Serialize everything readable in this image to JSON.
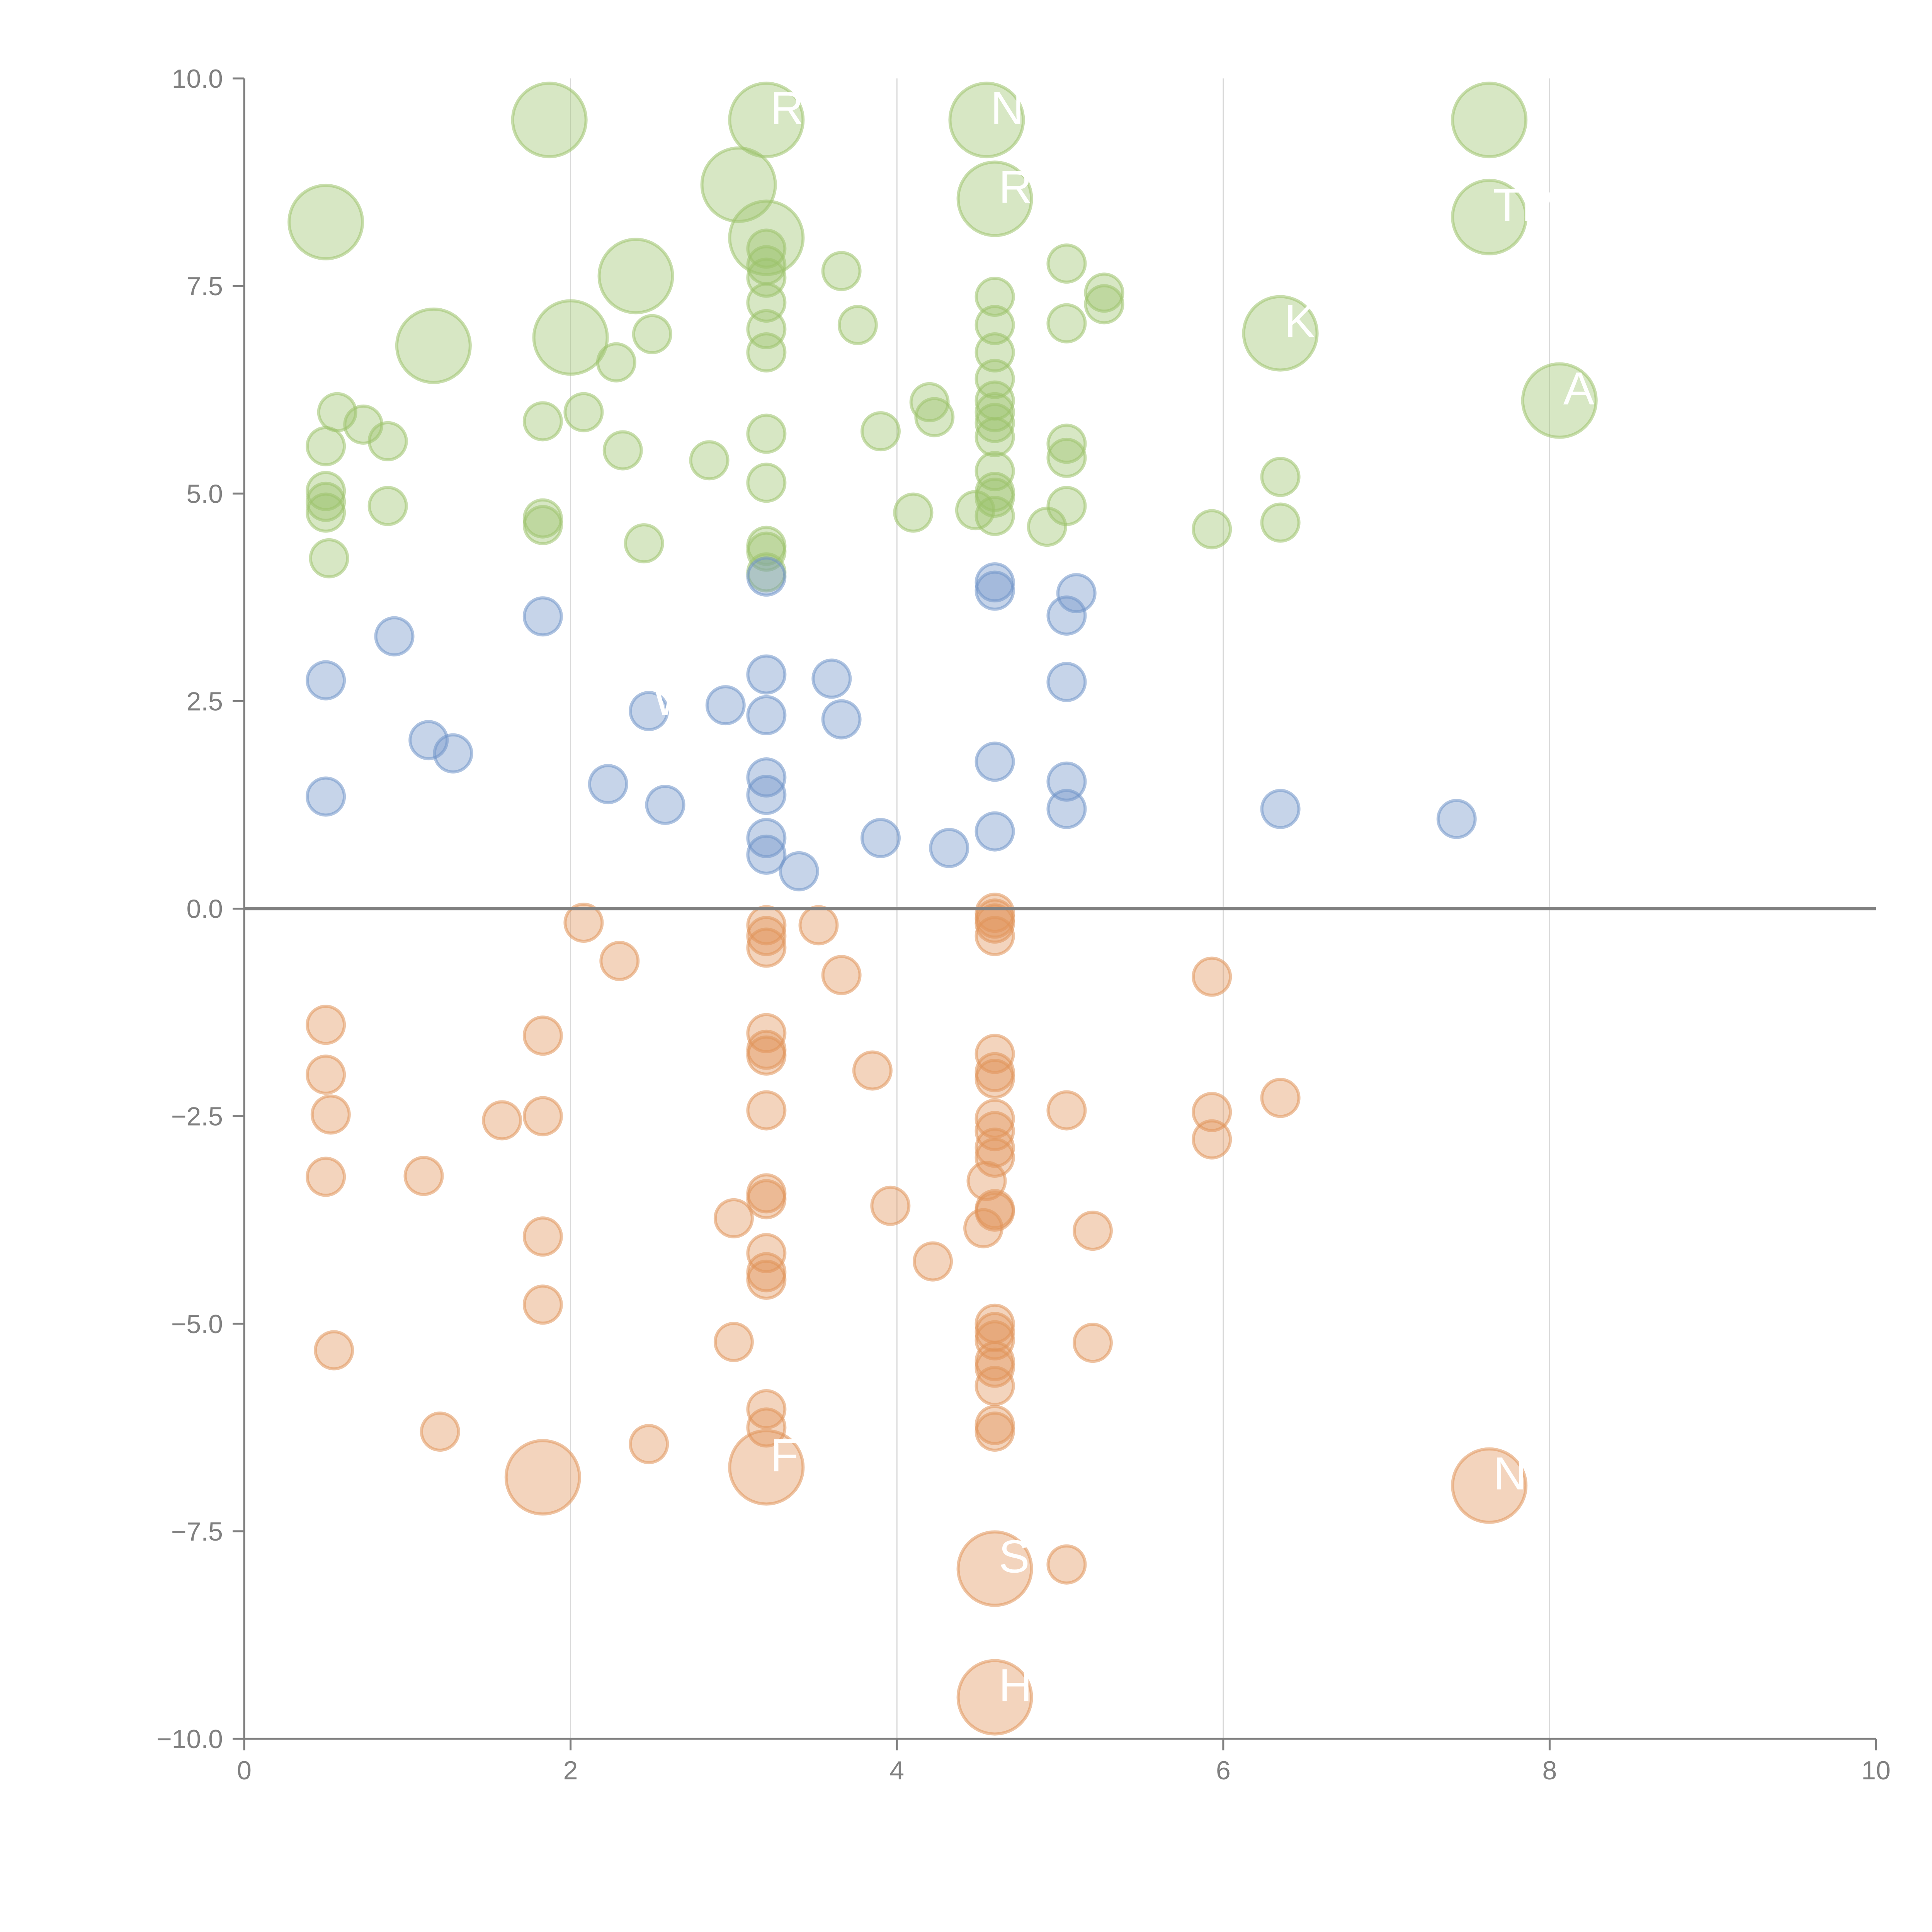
{
  "chart_data": {
    "type": "scatter",
    "subtype": "bubble",
    "title": "",
    "xlabel": "",
    "ylabel": "",
    "xlim": [
      0,
      10
    ],
    "ylim": [
      -10,
      10
    ],
    "x_ticks": [
      "0",
      "2",
      "4",
      "6",
      "8",
      "10"
    ],
    "x_tick_values": [
      0,
      2,
      4,
      6,
      8,
      10
    ],
    "y_ticks": [
      "10.0",
      "7.5",
      "5.0",
      "2.5",
      "0.0",
      "−2.5",
      "−5.0",
      "−7.5",
      "−10.0"
    ],
    "y_tick_values": [
      10,
      7.5,
      5,
      2.5,
      0,
      -2.5,
      -5,
      -7.5,
      -10
    ],
    "vertical_gridlines_at": [
      2,
      4,
      6,
      8
    ],
    "zero_line": true,
    "legend": "none",
    "colors": {
      "high": "#9cc26b",
      "mid": "#7094c8",
      "low": "#e0935a",
      "axis": "#808080",
      "grid": "#d9d9d9",
      "label": "#ffffff"
    },
    "size_note": "bubble size: 1 = small, 2 = large",
    "series": [
      {
        "name": "high",
        "color_key": "high",
        "points": [
          [
            1.87,
            9.5,
            2
          ],
          [
            3.2,
            9.5,
            2
          ],
          [
            4.55,
            9.5,
            2
          ],
          [
            7.63,
            9.5,
            2
          ],
          [
            0.5,
            8.27,
            2
          ],
          [
            3.03,
            8.72,
            2
          ],
          [
            4.6,
            8.55,
            2
          ],
          [
            3.2,
            8.08,
            2
          ],
          [
            7.63,
            8.33,
            2
          ],
          [
            2.4,
            7.62,
            2
          ],
          [
            1.16,
            6.78,
            2
          ],
          [
            2.0,
            6.88,
            2
          ],
          [
            6.35,
            6.93,
            2
          ],
          [
            8.06,
            6.12,
            2
          ],
          [
            3.2,
            7.95,
            1
          ],
          [
            3.2,
            7.75,
            1
          ],
          [
            3.2,
            7.6,
            1
          ],
          [
            3.2,
            7.3,
            1
          ],
          [
            3.2,
            6.98,
            1
          ],
          [
            3.2,
            6.7,
            1
          ],
          [
            3.66,
            7.68,
            1
          ],
          [
            3.76,
            7.03,
            1
          ],
          [
            4.6,
            7.37,
            1
          ],
          [
            4.6,
            7.03,
            1
          ],
          [
            4.6,
            6.7,
            1
          ],
          [
            4.6,
            6.38,
            1
          ],
          [
            4.6,
            6.12,
            1
          ],
          [
            4.6,
            5.98,
            1
          ],
          [
            4.6,
            5.85,
            1
          ],
          [
            4.6,
            5.68,
            1
          ],
          [
            4.6,
            5.27,
            1
          ],
          [
            4.6,
            5.02,
            1
          ],
          [
            4.6,
            4.95,
            1
          ],
          [
            4.6,
            4.73,
            1
          ],
          [
            4.48,
            4.8,
            1
          ],
          [
            5.04,
            7.77,
            1
          ],
          [
            5.04,
            7.05,
            1
          ],
          [
            5.27,
            7.42,
            1
          ],
          [
            5.27,
            7.28,
            1
          ],
          [
            2.28,
            6.58,
            1
          ],
          [
            2.5,
            6.92,
            1
          ],
          [
            0.57,
            5.98,
            1
          ],
          [
            0.73,
            5.83,
            1
          ],
          [
            0.88,
            5.63,
            1
          ],
          [
            0.5,
            5.57,
            1
          ],
          [
            0.5,
            5.03,
            1
          ],
          [
            0.5,
            4.9,
            1
          ],
          [
            0.5,
            4.77,
            1
          ],
          [
            0.52,
            4.22,
            1
          ],
          [
            0.88,
            4.85,
            1
          ],
          [
            1.83,
            5.87,
            1
          ],
          [
            2.08,
            5.98,
            1
          ],
          [
            2.32,
            5.52,
            1
          ],
          [
            2.85,
            5.4,
            1
          ],
          [
            3.2,
            5.72,
            1
          ],
          [
            3.2,
            5.13,
            1
          ],
          [
            1.83,
            4.7,
            1
          ],
          [
            1.83,
            4.62,
            1
          ],
          [
            2.45,
            4.4,
            1
          ],
          [
            3.2,
            4.37,
            1
          ],
          [
            3.2,
            4.3,
            1
          ],
          [
            3.2,
            4.05,
            1
          ],
          [
            3.9,
            5.75,
            1
          ],
          [
            4.2,
            6.1,
            1
          ],
          [
            4.23,
            5.92,
            1
          ],
          [
            4.1,
            4.77,
            1
          ],
          [
            5.04,
            5.6,
            1
          ],
          [
            5.04,
            5.43,
            1
          ],
          [
            5.04,
            4.85,
            1
          ],
          [
            4.92,
            4.6,
            1
          ],
          [
            5.93,
            4.57,
            1
          ],
          [
            6.35,
            5.2,
            1
          ],
          [
            6.35,
            4.65,
            1
          ]
        ]
      },
      {
        "name": "mid",
        "color_key": "mid",
        "points": [
          [
            0.5,
            2.75,
            1
          ],
          [
            0.5,
            1.35,
            1
          ],
          [
            0.92,
            3.28,
            1
          ],
          [
            1.13,
            2.03,
            1
          ],
          [
            1.28,
            1.87,
            1
          ],
          [
            1.83,
            3.52,
            1
          ],
          [
            2.23,
            1.5,
            1
          ],
          [
            2.48,
            2.38,
            1
          ],
          [
            2.58,
            1.25,
            1
          ],
          [
            2.95,
            2.45,
            1
          ],
          [
            3.2,
            4.0,
            1
          ],
          [
            3.2,
            2.82,
            1
          ],
          [
            3.2,
            2.33,
            1
          ],
          [
            3.2,
            1.58,
            1
          ],
          [
            3.2,
            1.37,
            1
          ],
          [
            3.2,
            0.85,
            1
          ],
          [
            3.2,
            0.65,
            1
          ],
          [
            3.4,
            0.45,
            1
          ],
          [
            3.6,
            2.77,
            1
          ],
          [
            3.66,
            2.28,
            1
          ],
          [
            3.9,
            0.85,
            1
          ],
          [
            4.32,
            0.73,
            1
          ],
          [
            4.6,
            3.93,
            1
          ],
          [
            4.6,
            3.83,
            1
          ],
          [
            4.6,
            1.77,
            1
          ],
          [
            4.6,
            0.93,
            1
          ],
          [
            5.04,
            3.53,
            1
          ],
          [
            5.1,
            3.8,
            1
          ],
          [
            5.04,
            2.73,
            1
          ],
          [
            5.04,
            1.53,
            1
          ],
          [
            5.04,
            1.2,
            1
          ],
          [
            6.35,
            1.2,
            1
          ],
          [
            7.43,
            1.08,
            1
          ]
        ]
      },
      {
        "name": "low",
        "color_key": "low",
        "points": [
          [
            2.08,
            -0.17,
            1
          ],
          [
            2.3,
            -0.63,
            1
          ],
          [
            3.2,
            -0.2,
            1
          ],
          [
            3.2,
            -0.33,
            1
          ],
          [
            3.2,
            -0.47,
            1
          ],
          [
            3.52,
            -0.2,
            1
          ],
          [
            3.66,
            -0.8,
            1
          ],
          [
            4.6,
            -0.05,
            1
          ],
          [
            4.6,
            -0.12,
            1
          ],
          [
            4.6,
            -0.18,
            1
          ],
          [
            4.6,
            -0.33,
            1
          ],
          [
            5.93,
            -0.82,
            1
          ],
          [
            0.5,
            -1.4,
            1
          ],
          [
            0.5,
            -2.0,
            1
          ],
          [
            0.53,
            -2.48,
            1
          ],
          [
            0.5,
            -3.23,
            1
          ],
          [
            1.1,
            -3.22,
            1
          ],
          [
            1.58,
            -2.55,
            1
          ],
          [
            1.83,
            -1.53,
            1
          ],
          [
            1.83,
            -2.5,
            1
          ],
          [
            1.83,
            -3.95,
            1
          ],
          [
            1.83,
            -4.77,
            1
          ],
          [
            3.2,
            -1.5,
            1
          ],
          [
            3.2,
            -1.7,
            1
          ],
          [
            3.2,
            -1.77,
            1
          ],
          [
            3.2,
            -2.43,
            1
          ],
          [
            3.2,
            -3.43,
            1
          ],
          [
            3.2,
            -3.5,
            1
          ],
          [
            3.2,
            -4.15,
            1
          ],
          [
            3.2,
            -4.38,
            1
          ],
          [
            3.2,
            -4.47,
            1
          ],
          [
            3.0,
            -3.73,
            1
          ],
          [
            3.85,
            -1.95,
            1
          ],
          [
            3.96,
            -3.58,
            1
          ],
          [
            4.22,
            -4.25,
            1
          ],
          [
            4.6,
            -1.75,
            1
          ],
          [
            4.6,
            -1.97,
            1
          ],
          [
            4.6,
            -2.05,
            1
          ],
          [
            4.6,
            -2.53,
            1
          ],
          [
            4.6,
            -2.68,
            1
          ],
          [
            4.6,
            -2.88,
            1
          ],
          [
            4.6,
            -3.0,
            1
          ],
          [
            4.55,
            -3.28,
            1
          ],
          [
            4.6,
            -3.62,
            1
          ],
          [
            4.6,
            -3.65,
            1
          ],
          [
            4.53,
            -3.85,
            1
          ],
          [
            5.04,
            -2.43,
            1
          ],
          [
            5.2,
            -3.88,
            1
          ],
          [
            5.93,
            -2.45,
            1
          ],
          [
            5.93,
            -2.78,
            1
          ],
          [
            6.35,
            -2.28,
            1
          ],
          [
            0.55,
            -5.32,
            1
          ],
          [
            1.2,
            -6.3,
            1
          ],
          [
            2.48,
            -6.45,
            1
          ],
          [
            3.0,
            -5.22,
            1
          ],
          [
            3.2,
            -6.03,
            1
          ],
          [
            3.2,
            -6.25,
            1
          ],
          [
            4.6,
            -5.0,
            1
          ],
          [
            4.6,
            -5.1,
            1
          ],
          [
            4.6,
            -5.2,
            1
          ],
          [
            4.6,
            -5.45,
            1
          ],
          [
            4.6,
            -5.53,
            1
          ],
          [
            4.6,
            -5.75,
            1
          ],
          [
            4.6,
            -6.22,
            1
          ],
          [
            4.6,
            -6.3,
            1
          ],
          [
            5.2,
            -5.23,
            1
          ],
          [
            5.04,
            -7.9,
            1
          ],
          [
            1.83,
            -6.85,
            2
          ],
          [
            3.2,
            -6.73,
            2
          ],
          [
            7.63,
            -6.95,
            2
          ],
          [
            4.6,
            -7.95,
            2
          ],
          [
            4.6,
            -9.5,
            2
          ]
        ]
      }
    ],
    "annotations": [
      {
        "text": "R",
        "x": 3.2,
        "y": 9.5
      },
      {
        "text": "N",
        "x": 4.55,
        "y": 9.5
      },
      {
        "text": "RT",
        "x": 4.6,
        "y": 8.55
      },
      {
        "text": "TM",
        "x": 7.63,
        "y": 8.33
      },
      {
        "text": "KB",
        "x": 6.35,
        "y": 6.93
      },
      {
        "text": "A",
        "x": 8.06,
        "y": 6.12
      },
      {
        "text": "W",
        "x": 2.48,
        "y": 2.38
      },
      {
        "text": "F",
        "x": 3.2,
        "y": -6.73
      },
      {
        "text": "N",
        "x": 7.63,
        "y": -6.95
      },
      {
        "text": "S",
        "x": 4.6,
        "y": -7.95
      },
      {
        "text": "H",
        "x": 4.6,
        "y": -9.5
      }
    ]
  }
}
